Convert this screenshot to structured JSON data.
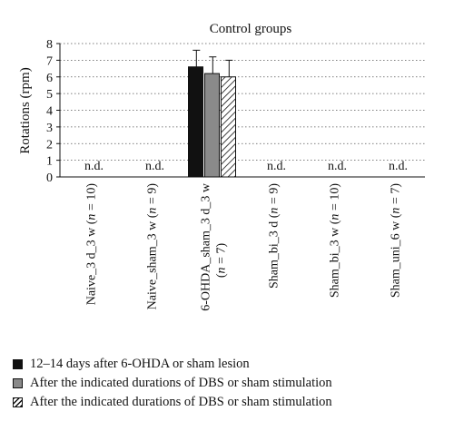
{
  "chart_data": {
    "type": "bar",
    "title": "Control groups",
    "ylabel": "Rotations (rpm)",
    "xlabel": "",
    "ylim": [
      0,
      8
    ],
    "yticks": [
      0,
      1,
      2,
      3,
      4,
      5,
      6,
      7,
      8
    ],
    "grid": "dotted horizontal",
    "categories": [
      [
        "Naive_3 d_3 w (",
        "n",
        " = 10)"
      ],
      [
        "Naive_sham_3 w (",
        "n",
        " = 9)"
      ],
      [
        "6-OHDA_sham_3 d_3 w",
        "",
        ""
      ],
      [
        "Sham_bi_3 d (",
        "n",
        " = 9)"
      ],
      [
        "Sham_bi_3 w (",
        "n",
        " = 10)"
      ],
      [
        "Sham_uni_6 w (",
        "n",
        " = 7)"
      ]
    ],
    "category_second_line": [
      "",
      "",
      "(n = 7)",
      "",
      "",
      ""
    ],
    "series": [
      {
        "name": "12–14 days after 6-OHDA or sham lesion",
        "color": "#111111",
        "pattern": "solid",
        "values": [
          null,
          null,
          6.6,
          null,
          null,
          null
        ],
        "errors": [
          null,
          null,
          1.0,
          null,
          null,
          null
        ]
      },
      {
        "name": "After the indicated durations of DBS or sham stimulation",
        "color": "#8a8a8a",
        "pattern": "solid",
        "values": [
          null,
          null,
          6.2,
          null,
          null,
          null
        ],
        "errors": [
          null,
          null,
          1.0,
          null,
          null,
          null
        ]
      },
      {
        "name": "After the indicated durations of DBS or sham stimulation",
        "color": "#ffffff",
        "pattern": "hatched",
        "values": [
          null,
          null,
          6.0,
          null,
          null,
          null
        ],
        "errors": [
          null,
          null,
          1.0,
          null,
          null,
          null
        ]
      }
    ],
    "annotations": [
      "n.d.",
      "n.d.",
      "",
      "n.d.",
      "n.d.",
      "n.d."
    ]
  }
}
